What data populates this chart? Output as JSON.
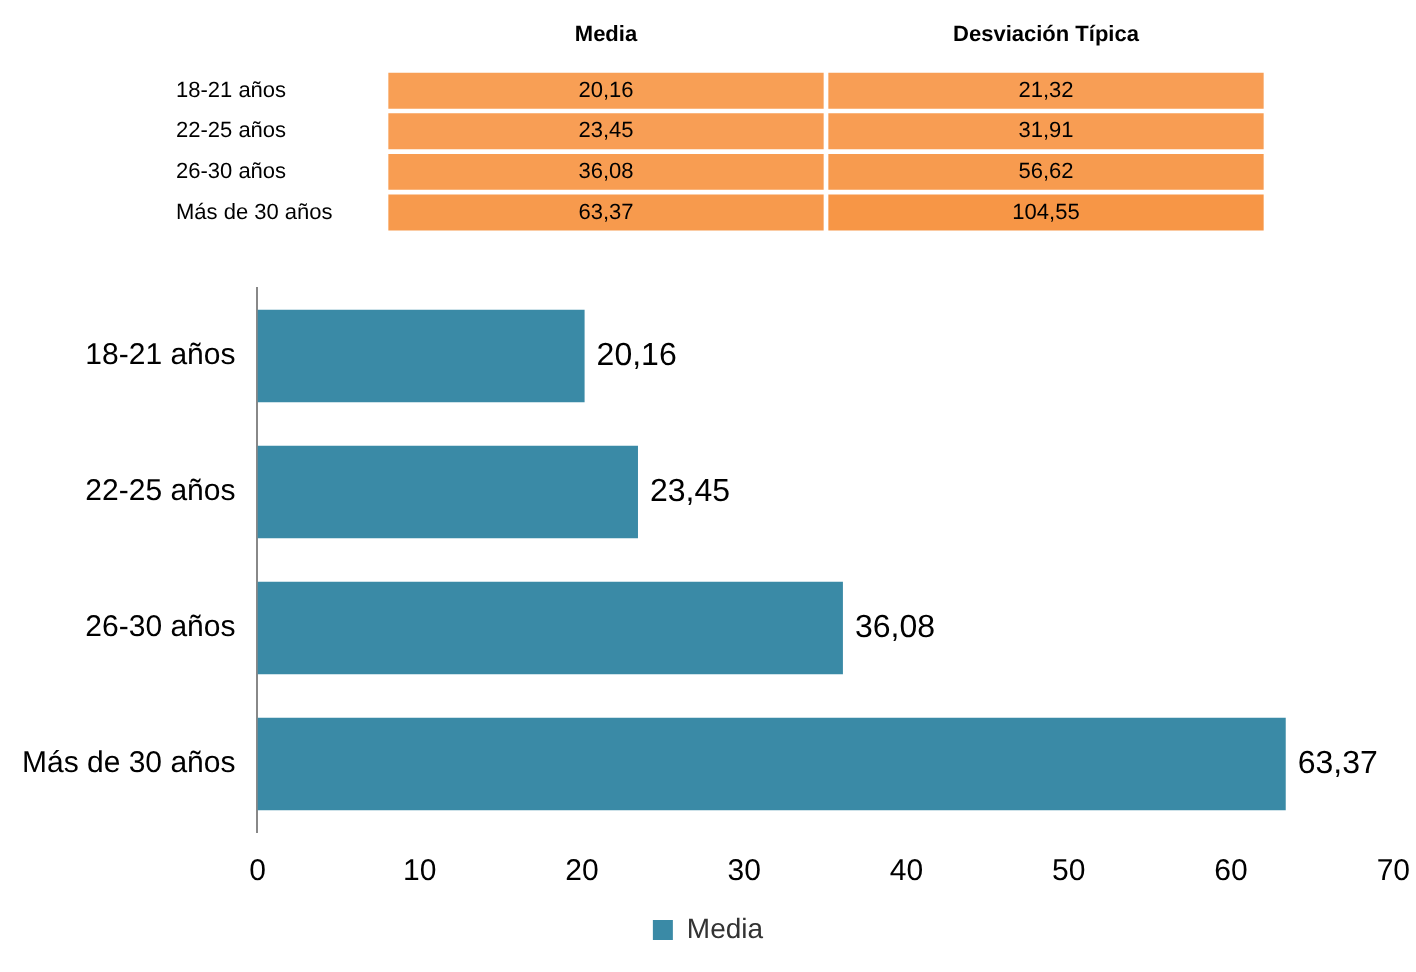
{
  "chart_data": [
    {
      "type": "heatmap",
      "categories": [
        "Media",
        "Desviación Típica"
      ],
      "y_categories": [
        "18-21 años",
        "22-25 años",
        "26-30 años",
        "Más de 30 años"
      ],
      "cells": [
        [
          20.16,
          21.32
        ],
        [
          23.45,
          31.91
        ],
        [
          36.08,
          56.62
        ],
        [
          63.37,
          104.55
        ]
      ],
      "cell_labels": [
        [
          "20,16",
          "21,32"
        ],
        [
          "23,45",
          "31,91"
        ],
        [
          "36,08",
          "56,62"
        ],
        [
          "63,37",
          "104,55"
        ]
      ],
      "color": "#f79646"
    },
    {
      "type": "bar",
      "orientation": "horizontal",
      "categories": [
        "18-21 años",
        "22-25 años",
        "26-30 años",
        "Más de 30 años"
      ],
      "series": [
        {
          "name": "Media",
          "color": "#3a8aa6",
          "values": [
            20.16,
            23.45,
            36.08,
            63.37
          ],
          "value_labels": [
            "20,16",
            "23,45",
            "36,08",
            "63,37"
          ]
        }
      ],
      "xlim": [
        0,
        70
      ],
      "xticks": [
        0,
        10,
        20,
        30,
        40,
        50,
        60,
        70
      ],
      "grid": false,
      "legend": "bottom"
    }
  ]
}
